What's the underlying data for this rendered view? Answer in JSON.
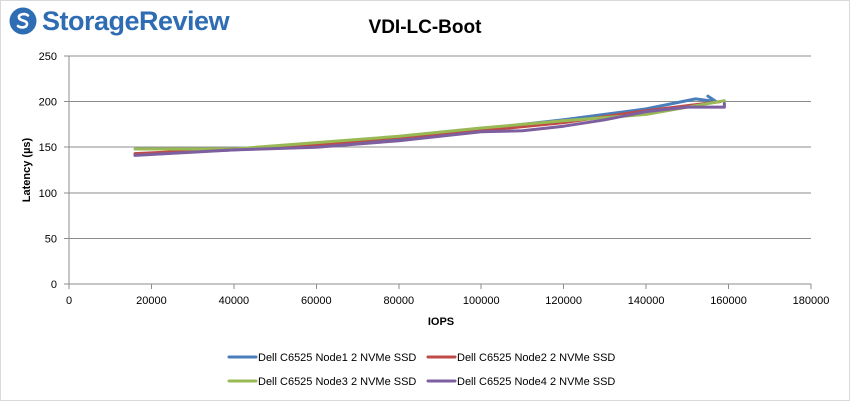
{
  "brand": {
    "name": "StorageReview",
    "color": "#2e6db4"
  },
  "chart_data": {
    "type": "line",
    "title": "VDI-LC-Boot",
    "xlabel": "IOPS",
    "ylabel": "Latency (µs)",
    "xlim": [
      0,
      180000
    ],
    "ylim": [
      0,
      250
    ],
    "x_ticks": [
      0,
      20000,
      40000,
      60000,
      80000,
      100000,
      120000,
      140000,
      160000,
      180000
    ],
    "y_ticks": [
      0,
      50,
      100,
      150,
      200,
      250
    ],
    "grid": "horizontal",
    "legend_position": "bottom",
    "series": [
      {
        "name": "Dell C6525 Node1 2 NVMe SSD",
        "color": "#4a7ebb",
        "points": [
          [
            16000,
            142
          ],
          [
            40000,
            147
          ],
          [
            60000,
            152
          ],
          [
            80000,
            160
          ],
          [
            100000,
            170
          ],
          [
            120000,
            180
          ],
          [
            140000,
            192
          ],
          [
            152000,
            203
          ],
          [
            157000,
            200
          ],
          [
            155000,
            206
          ]
        ]
      },
      {
        "name": "Dell C6525 Node2 2 NVMe SSD",
        "color": "#be4b48",
        "points": [
          [
            16000,
            143
          ],
          [
            40000,
            148
          ],
          [
            60000,
            153
          ],
          [
            80000,
            161
          ],
          [
            100000,
            168
          ],
          [
            120000,
            177
          ],
          [
            140000,
            190
          ],
          [
            158000,
            200
          ]
        ]
      },
      {
        "name": "Dell C6525 Node3 2 NVMe SSD",
        "color": "#98b954",
        "points": [
          [
            16000,
            148
          ],
          [
            40000,
            148
          ],
          [
            60000,
            155
          ],
          [
            80000,
            162
          ],
          [
            100000,
            171
          ],
          [
            120000,
            179
          ],
          [
            140000,
            186
          ],
          [
            159000,
            201
          ]
        ]
      },
      {
        "name": "Dell C6525 Node4 2 NVMe SSD",
        "color": "#7d5fa0",
        "points": [
          [
            16000,
            141
          ],
          [
            40000,
            147
          ],
          [
            60000,
            150
          ],
          [
            80000,
            157
          ],
          [
            100000,
            167
          ],
          [
            110000,
            168
          ],
          [
            120000,
            173
          ],
          [
            130000,
            180
          ],
          [
            140000,
            189
          ],
          [
            150000,
            194
          ],
          [
            159000,
            194
          ],
          [
            159000,
            198
          ]
        ]
      }
    ]
  }
}
